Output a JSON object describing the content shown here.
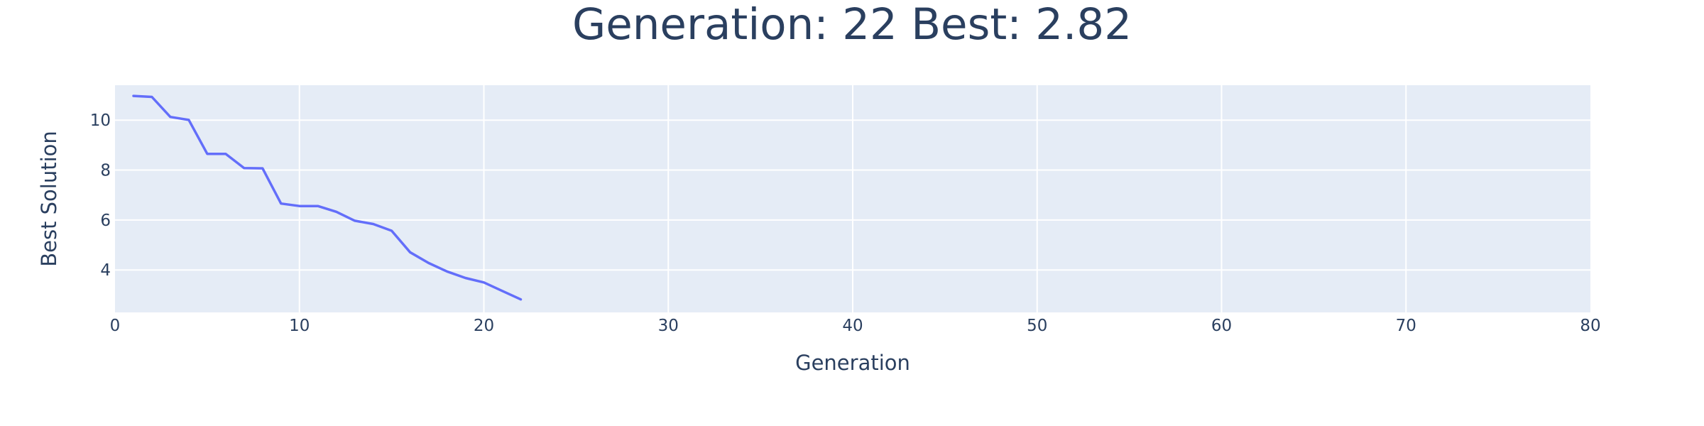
{
  "chart_data": {
    "type": "line",
    "title": "Generation: 22 Best: 2.82",
    "xlabel": "Generation",
    "ylabel": "Best Solution",
    "xlim": [
      0,
      80
    ],
    "ylim": [
      2.3,
      11.4
    ],
    "x_ticks": [
      0,
      10,
      20,
      30,
      40,
      50,
      60,
      70,
      80
    ],
    "y_ticks": [
      4,
      6,
      8,
      10
    ],
    "grid": true,
    "colors": {
      "plot_background": "#e5ecf6",
      "grid": "#ffffff",
      "line": "#636efa",
      "text": "#2a3f5f"
    },
    "series": [
      {
        "x": [
          1,
          2,
          3,
          4,
          5,
          6,
          7,
          8,
          9,
          10,
          11,
          12,
          13,
          14,
          15,
          16,
          17,
          18,
          19,
          20,
          21,
          22
        ],
        "values": [
          10.97,
          10.93,
          10.13,
          10.01,
          8.65,
          8.65,
          8.08,
          8.07,
          6.66,
          6.56,
          6.56,
          6.33,
          5.97,
          5.84,
          5.57,
          4.71,
          4.28,
          3.94,
          3.68,
          3.5,
          3.16,
          2.82
        ]
      }
    ]
  }
}
